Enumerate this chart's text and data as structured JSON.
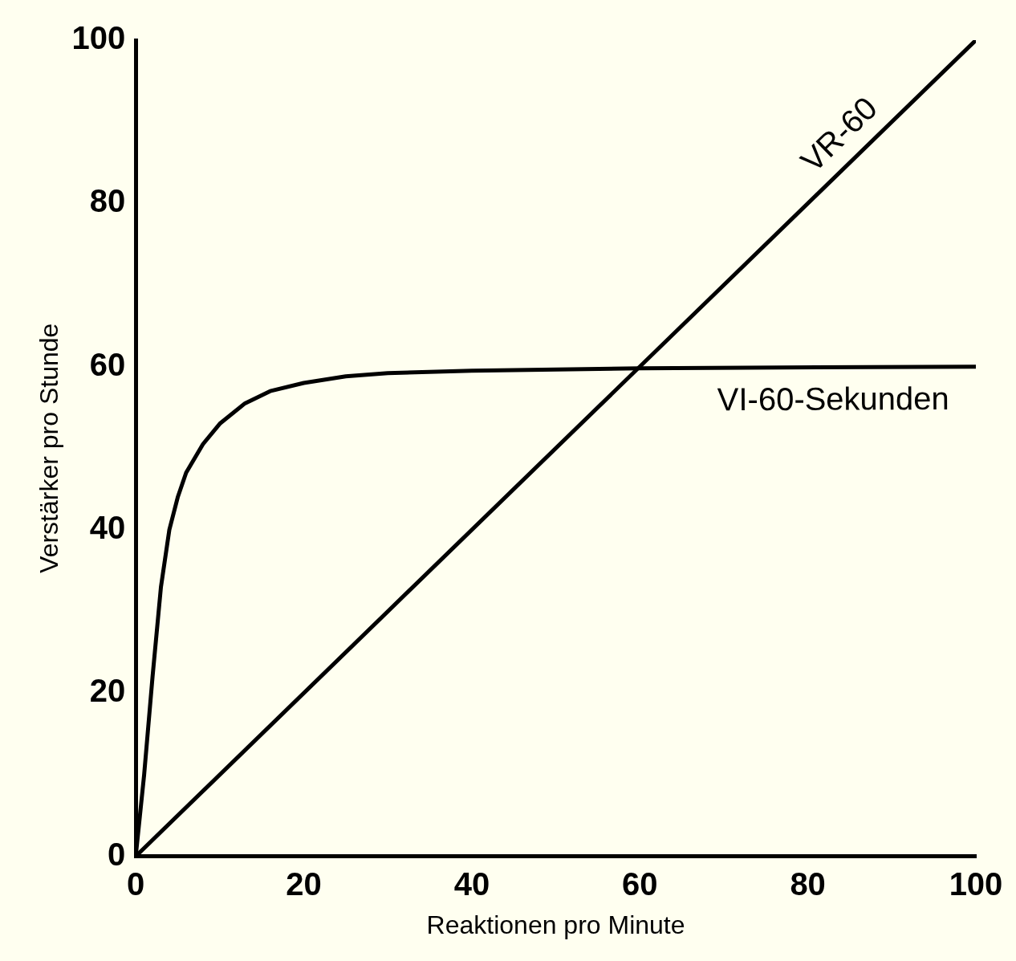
{
  "chart_data": {
    "type": "line",
    "xlabel": "Reaktionen pro Minute",
    "ylabel": "Verstärker pro Stunde",
    "xlim": [
      0,
      100
    ],
    "ylim": [
      0,
      100
    ],
    "xticks": [
      0,
      20,
      40,
      60,
      80,
      100
    ],
    "yticks": [
      0,
      20,
      40,
      60,
      80,
      100
    ],
    "grid": false,
    "marker": "none",
    "line_style": "solid",
    "series": [
      {
        "name": "VR-60",
        "color": "#000000",
        "x": [
          0,
          100
        ],
        "values": [
          0,
          100
        ]
      },
      {
        "name": "VI-60-Sekunden",
        "color": "#000000",
        "x": [
          0,
          1,
          2,
          3,
          4,
          5,
          6,
          8,
          10,
          13,
          16,
          20,
          25,
          30,
          40,
          60,
          100
        ],
        "values": [
          0,
          10,
          22,
          33,
          40,
          44,
          47,
          50.5,
          53,
          55.5,
          57,
          58,
          58.8,
          59.2,
          59.5,
          59.8,
          60
        ]
      }
    ]
  }
}
